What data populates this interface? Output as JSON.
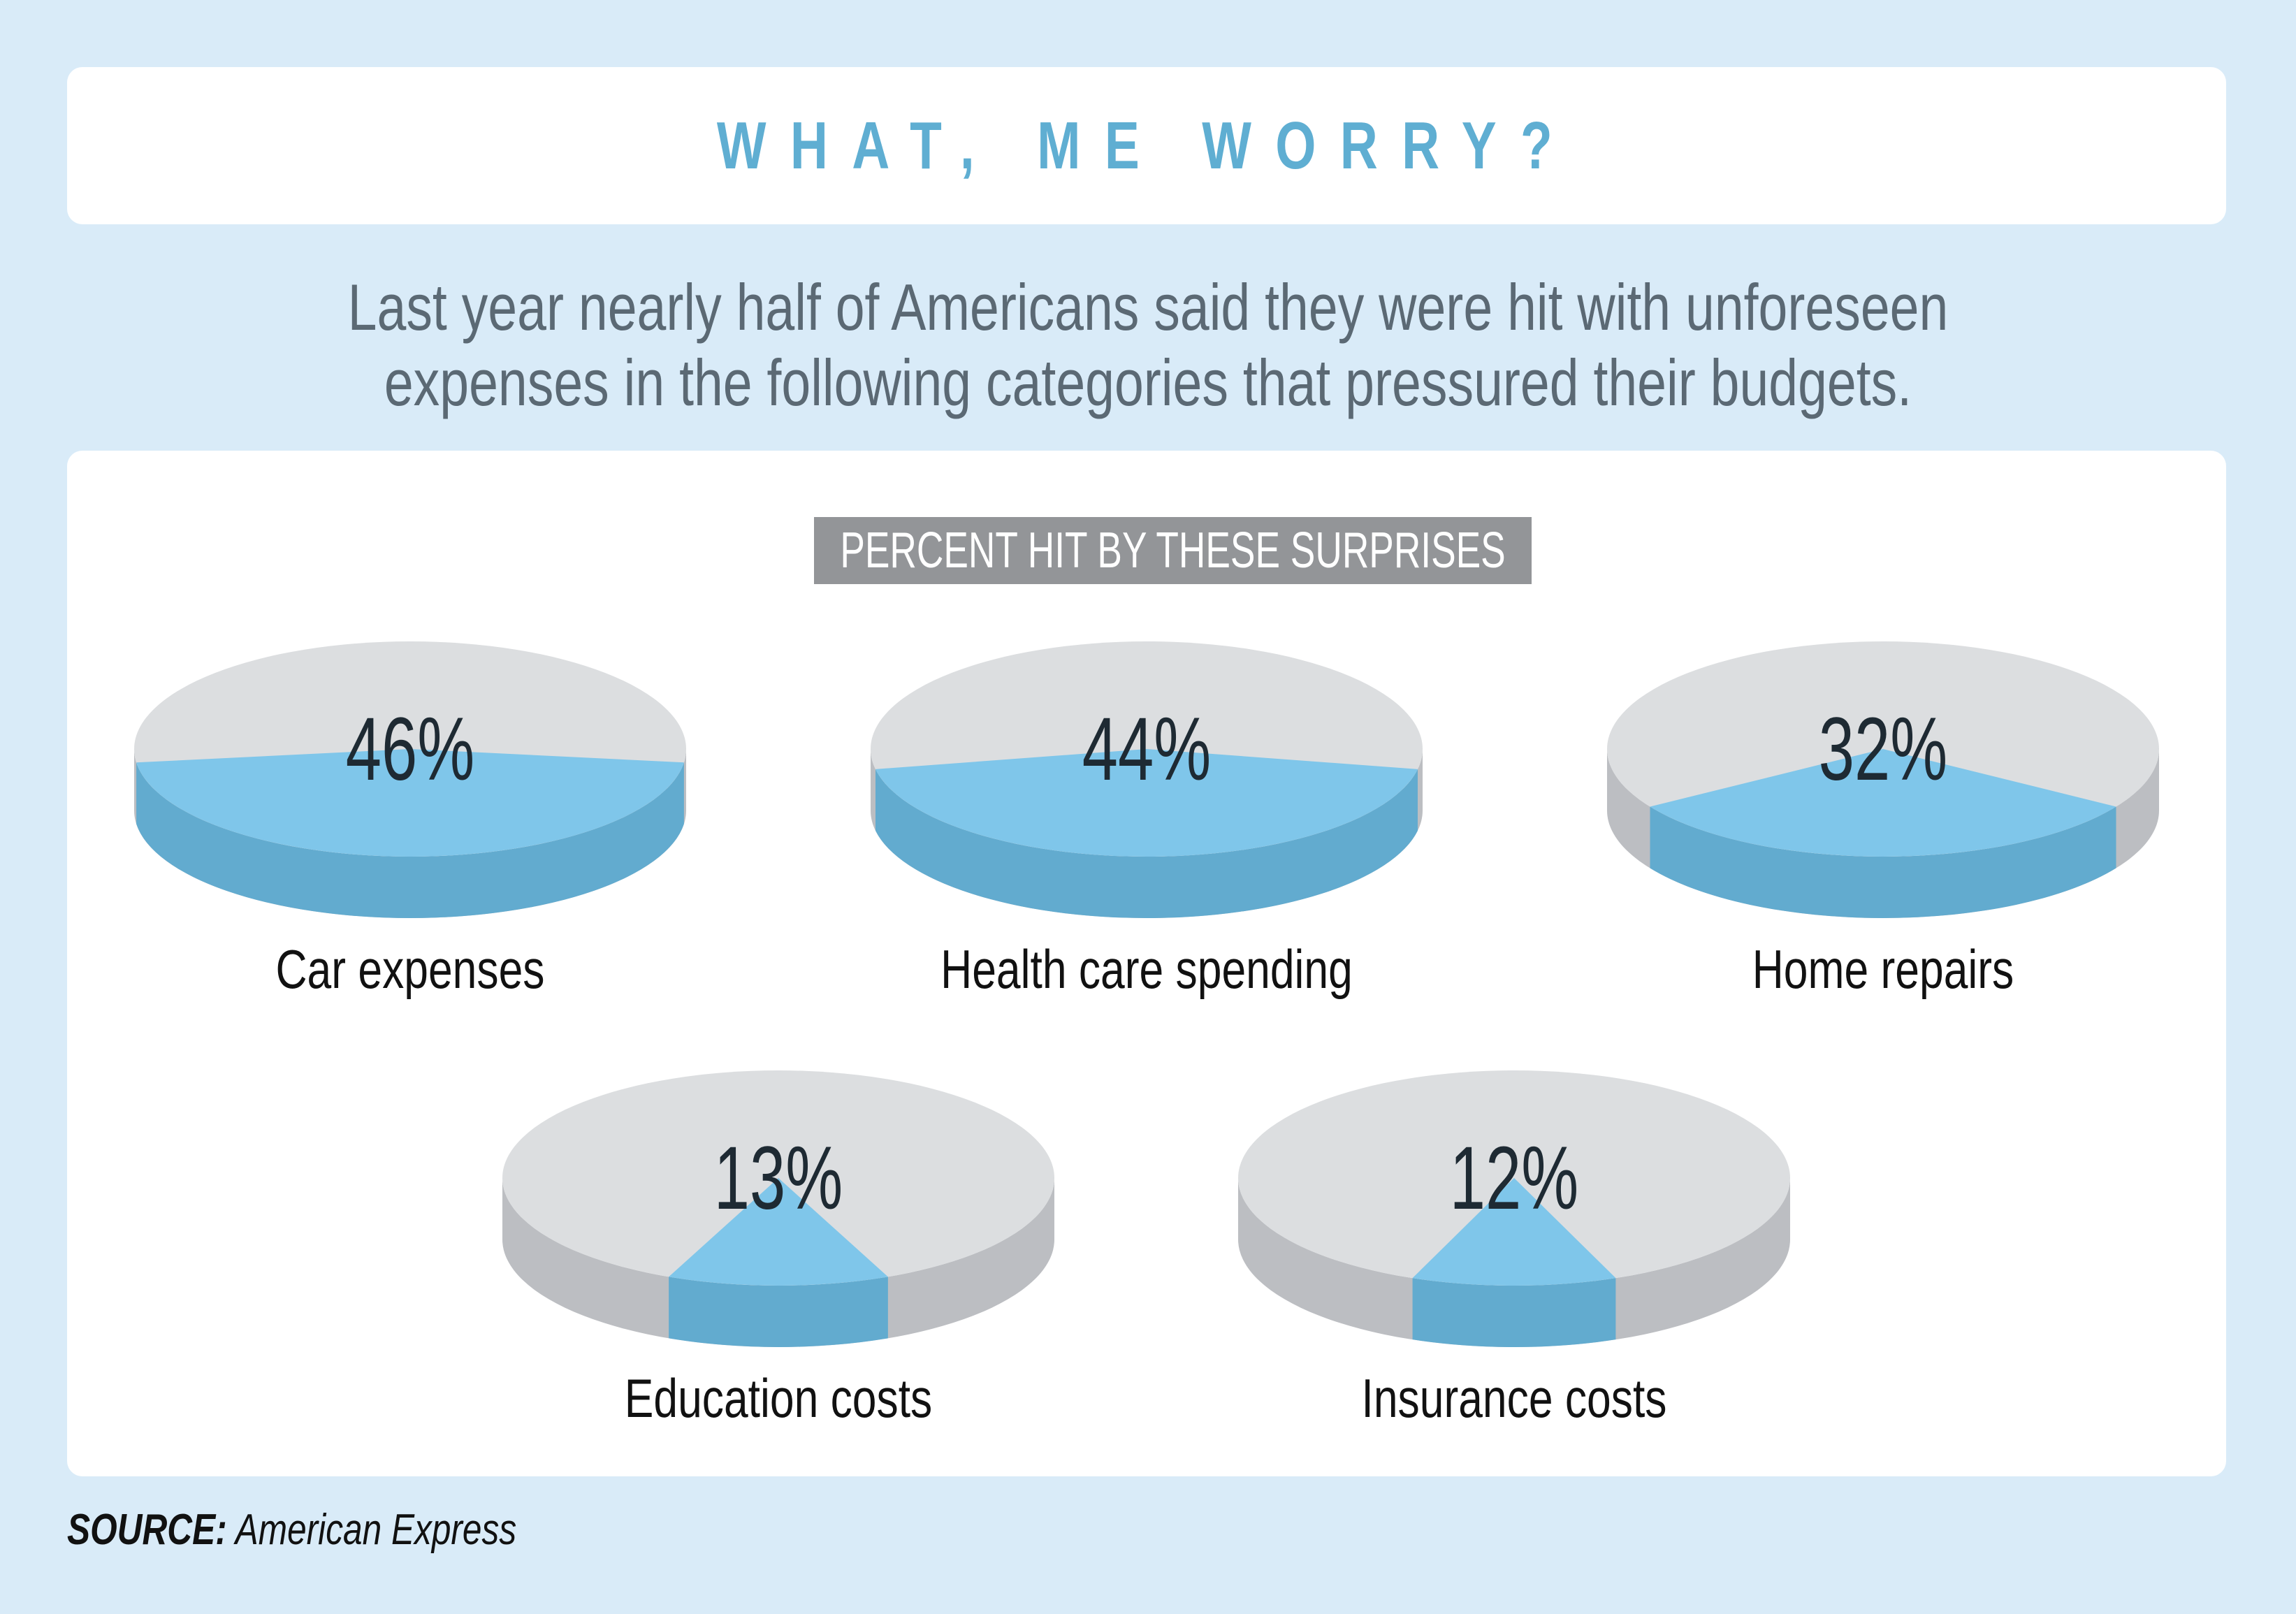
{
  "header": {
    "title": "WHAT, ME WORRY?",
    "subtitle_lines": [
      "Last year nearly half of Americans said they were hit with unforeseen",
      "expenses in the following categories that pressured their budgets."
    ]
  },
  "colors": {
    "background": "#d9ebf8",
    "title": "#5faed2",
    "slice_top": "#7fc6ea",
    "slice_side": "#62abcf",
    "rest_top": "#dcdee0",
    "rest_side": "#bcbec2",
    "banner": "#939598"
  },
  "chart_data": {
    "type": "pie",
    "title": "PERCENT HIT BY THESE SURPRISES",
    "unit": "%",
    "categories": [
      "Car expenses",
      "Health care spending",
      "Home repairs",
      "Education costs",
      "Insurance costs"
    ],
    "values": [
      46,
      44,
      32,
      13,
      12
    ],
    "labels": [
      "46%",
      "44%",
      "32%",
      "13%",
      "12%"
    ],
    "layout": "3 pies top row, 2 pies bottom row"
  },
  "footer": {
    "source_label": "SOURCE:",
    "source_value": "American Express"
  }
}
